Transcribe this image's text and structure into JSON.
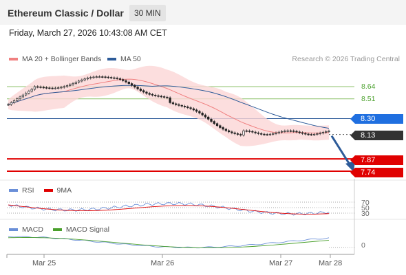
{
  "header": {
    "title": "Ethereum Classic / Dollar",
    "timeframe": "30 MIN"
  },
  "datetime": "Friday, March 27, 2026 10:43:08 AM CET",
  "legend": {
    "bollinger": "MA 20 + Bollinger Bands",
    "ma50": "MA 50",
    "credit": "Research © 2026 Trading Central"
  },
  "colors": {
    "bollinger": "#f08080",
    "ma50": "#2d5b99",
    "support": "#e00000",
    "resistance": "#8cc26a",
    "pivot": "#1f6fe0",
    "last": "#333333",
    "rsi": "#6a8fd8",
    "rsi_ma": "#e00000",
    "macd": "#6a8fd8",
    "macd_signal": "#4aa02c"
  },
  "price_levels": [
    {
      "value": "8.64",
      "type": "resistance"
    },
    {
      "value": "8.51",
      "type": "resistance"
    },
    {
      "value": "8.30",
      "type": "pivot"
    },
    {
      "value": "8.13",
      "type": "last"
    },
    {
      "value": "7.87",
      "type": "support"
    },
    {
      "value": "7.74",
      "type": "support"
    }
  ],
  "rsi": {
    "label": "RSI",
    "ma_label": "9MA",
    "levels": [
      "70",
      "50",
      "30"
    ]
  },
  "macd": {
    "label": "MACD",
    "signal_label": "MACD Signal",
    "zero": "0"
  },
  "x_axis": [
    "Mar 25",
    "Mar 26",
    "Mar 27",
    "Mar 28"
  ]
}
